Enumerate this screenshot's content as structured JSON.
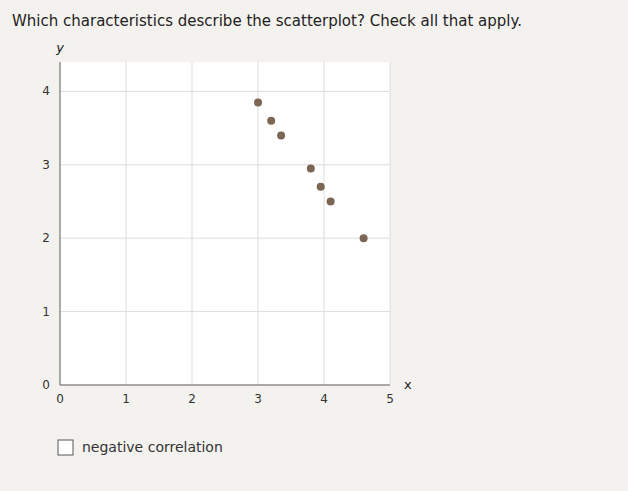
{
  "chart_data": {
    "type": "scatter",
    "title": "Which characteristics describe the scatterplot? Check all that apply.",
    "x": [
      3.0,
      3.2,
      3.35,
      3.8,
      3.95,
      4.1,
      4.6
    ],
    "values": [
      3.85,
      3.6,
      3.4,
      2.95,
      2.7,
      2.5,
      2.0
    ],
    "color": "#7a6652",
    "xlim": [
      0,
      5
    ],
    "ylim": [
      0,
      4.4
    ],
    "xticks": [
      0,
      1,
      2,
      3,
      4,
      5
    ],
    "yticks": [
      0,
      1,
      2,
      3,
      4
    ],
    "x_label": "x",
    "y_label": "y",
    "grid": true,
    "annotations": [
      "negative correlation"
    ]
  }
}
